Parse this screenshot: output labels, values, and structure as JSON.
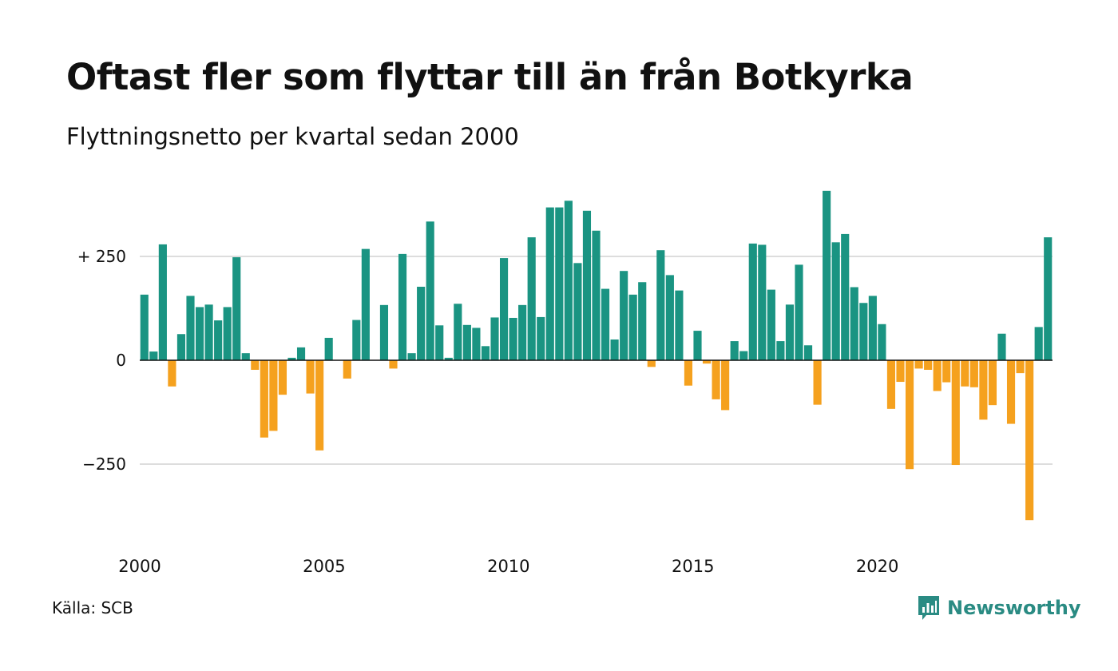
{
  "header": {
    "title": "Oftast fler som flyttar till än från Botkyrka",
    "subtitle": "Flyttningsnetto per kvartal sedan 2000"
  },
  "footer": {
    "source": "Källa: SCB",
    "brand": "Newsworthy",
    "brand_icon": "newsworthy-chart-logo-icon"
  },
  "colors": {
    "positive": "#1a9482",
    "negative": "#f5a11e",
    "grid": "#dddddd",
    "baseline": "#111111",
    "brand": "#2a8b83"
  },
  "chart_data": {
    "type": "bar",
    "x_start": "2000 Q1",
    "frequency": "quarterly",
    "xtick_labels": [
      "2000",
      "2005",
      "2010",
      "2015",
      "2020"
    ],
    "ytick_values": [
      250,
      0,
      -250
    ],
    "ytick_labels": [
      "+ 250",
      "0",
      "−250"
    ],
    "ylim": [
      -430,
      430
    ],
    "grid": true,
    "values": [
      158,
      21,
      279,
      -63,
      63,
      155,
      128,
      134,
      96,
      128,
      248,
      17,
      -23,
      -186,
      -170,
      -83,
      6,
      31,
      -80,
      -217,
      54,
      0,
      -44,
      97,
      268,
      0,
      133,
      -20,
      256,
      17,
      177,
      334,
      84,
      6,
      136,
      85,
      78,
      34,
      103,
      246,
      102,
      133,
      296,
      104,
      368,
      368,
      384,
      234,
      360,
      312,
      172,
      50,
      215,
      158,
      188,
      -16,
      265,
      205,
      168,
      -61,
      71,
      -8,
      -94,
      -120,
      46,
      22,
      281,
      278,
      170,
      46,
      134,
      230,
      36,
      -107,
      408,
      284,
      304,
      176,
      138,
      155,
      87,
      -117,
      -52,
      -262,
      -20,
      -23,
      -74,
      -53,
      -252,
      -63,
      -65,
      -143,
      -108,
      64,
      -153,
      -31,
      -385,
      80,
      296
    ]
  }
}
